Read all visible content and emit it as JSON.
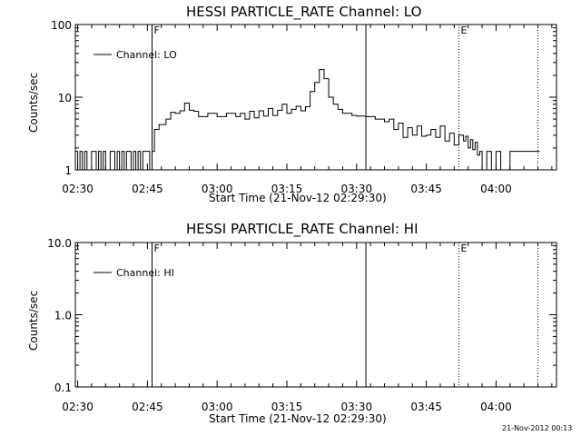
{
  "footer": {
    "timestamp": "21-Nov-2012 00:13"
  },
  "chart_data": [
    {
      "type": "line",
      "title": "HESSI PARTICLE_RATE Channel: LO",
      "xlabel": "Start Time (21-Nov-12 02:29:30)",
      "ylabel": "Counts/sec",
      "yscale": "log",
      "ylim": [
        1,
        100
      ],
      "yticks": [
        "1",
        "10",
        "100"
      ],
      "xlim": [
        "02:29:30",
        "04:13:00"
      ],
      "xticks": [
        "02:30",
        "02:45",
        "03:00",
        "03:15",
        "03:30",
        "03:45",
        "04:00"
      ],
      "legend": {
        "label": "Channel: LO",
        "position": "top-left"
      },
      "markers": [
        {
          "time": "02:46:00",
          "label": "F",
          "style": "solid"
        },
        {
          "time": "03:32:00",
          "label": "",
          "style": "solid"
        },
        {
          "time": "03:52:00",
          "label": "E",
          "style": "dotted"
        },
        {
          "time": "04:09:00",
          "label": "",
          "style": "dotted"
        }
      ],
      "series": [
        {
          "x": [
            "02:29:30",
            "02:30:00",
            "02:30:30",
            "02:31:00",
            "02:31:30",
            "02:32:00",
            "02:32:30",
            "02:33:00",
            "02:33:30",
            "02:34:00",
            "02:34:30",
            "02:35:00",
            "02:35:30",
            "02:36:00",
            "02:36:30",
            "02:37:00",
            "02:37:30",
            "02:38:00",
            "02:38:30",
            "02:39:00",
            "02:39:30",
            "02:40:00",
            "02:40:30",
            "02:41:00",
            "02:41:30",
            "02:42:00",
            "02:42:30",
            "02:43:00",
            "02:43:30",
            "02:44:00",
            "02:44:30",
            "02:45:00",
            "02:45:30",
            "02:46:00",
            "02:46:30",
            "02:47:30",
            "02:49:00",
            "02:50:00",
            "02:51:00",
            "02:52:00",
            "02:53:00",
            "02:54:00",
            "02:55:00",
            "02:56:00",
            "02:57:00",
            "02:58:00",
            "03:00:00",
            "03:02:00",
            "03:04:00",
            "03:05:00",
            "03:06:00",
            "03:07:00",
            "03:08:00",
            "03:09:00",
            "03:10:00",
            "03:11:00",
            "03:12:00",
            "03:13:00",
            "03:14:00",
            "03:15:00",
            "03:16:00",
            "03:17:00",
            "03:18:00",
            "03:19:00",
            "03:20:00",
            "03:21:00",
            "03:22:00",
            "03:23:00",
            "03:24:00",
            "03:25:00",
            "03:26:00",
            "03:27:00",
            "03:28:00",
            "03:29:00",
            "03:30:00",
            "03:32:00",
            "03:34:00",
            "03:36:00",
            "03:37:00",
            "03:38:00",
            "03:39:00",
            "03:40:00",
            "03:41:00",
            "03:42:00",
            "03:43:00",
            "03:44:00",
            "03:45:00",
            "03:46:00",
            "03:47:00",
            "03:48:00",
            "03:49:00",
            "03:50:00",
            "03:51:00",
            "03:52:00",
            "03:53:00",
            "03:53:30",
            "03:54:00",
            "03:54:30",
            "03:55:00",
            "03:55:30",
            "03:56:00",
            "03:56:30",
            "03:57:00",
            "03:58:00",
            "03:59:00",
            "04:00:00",
            "04:01:00",
            "04:02:00",
            "04:03:00",
            "04:04:00",
            "04:05:00",
            "04:06:00",
            "04:07:00",
            "04:08:00",
            "04:09:00"
          ],
          "y": [
            1.8,
            1.0,
            1.8,
            1.0,
            1.8,
            1.0,
            1.0,
            1.8,
            1.8,
            1.0,
            1.8,
            1.0,
            1.8,
            1.0,
            1.0,
            1.8,
            1.8,
            1.0,
            1.8,
            1.0,
            1.8,
            1.0,
            1.8,
            1.8,
            1.0,
            1.8,
            1.0,
            1.8,
            1.0,
            1.8,
            1.8,
            1.8,
            1.0,
            1.8,
            3.6,
            4.2,
            5.0,
            6.2,
            6.0,
            6.5,
            8.3,
            6.6,
            6.4,
            5.4,
            5.4,
            6.0,
            5.4,
            6.0,
            5.4,
            6.0,
            5.0,
            6.4,
            5.2,
            6.5,
            5.5,
            7.0,
            5.6,
            6.6,
            8.0,
            6.0,
            6.8,
            7.5,
            6.5,
            7.4,
            12.0,
            16.0,
            24.0,
            18.0,
            10.0,
            8.0,
            6.8,
            6.0,
            6.0,
            5.6,
            5.5,
            5.4,
            5.0,
            4.6,
            5.0,
            3.6,
            4.4,
            2.8,
            3.8,
            3.0,
            4.0,
            2.9,
            3.0,
            3.6,
            2.8,
            4.0,
            2.5,
            3.2,
            2.2,
            3.0,
            2.5,
            2.9,
            2.0,
            2.6,
            1.9,
            2.4,
            1.6,
            1.8,
            1.0,
            1.8,
            1.0,
            1.8,
            1.0,
            1.0,
            1.8,
            1.8,
            1.8,
            1.8,
            1.8,
            1.8,
            1.8
          ]
        }
      ]
    },
    {
      "type": "line",
      "title": "HESSI PARTICLE_RATE Channel: HI",
      "xlabel": "Start Time (21-Nov-12 02:29:30)",
      "ylabel": "Counts/sec",
      "yscale": "log",
      "ylim": [
        0.1,
        10
      ],
      "yticks": [
        "0.1",
        "1.0",
        "10.0"
      ],
      "xlim": [
        "02:29:30",
        "04:13:00"
      ],
      "xticks": [
        "02:30",
        "02:45",
        "03:00",
        "03:15",
        "03:30",
        "03:45",
        "04:00"
      ],
      "legend": {
        "label": "Channel: HI",
        "position": "top-left"
      },
      "markers": [
        {
          "time": "02:46:00",
          "label": "F",
          "style": "solid"
        },
        {
          "time": "03:32:00",
          "label": "",
          "style": "solid"
        },
        {
          "time": "03:52:00",
          "label": "E",
          "style": "dotted"
        },
        {
          "time": "04:09:00",
          "label": "",
          "style": "dotted"
        }
      ],
      "series": [
        {
          "x": [],
          "y": []
        }
      ]
    }
  ]
}
